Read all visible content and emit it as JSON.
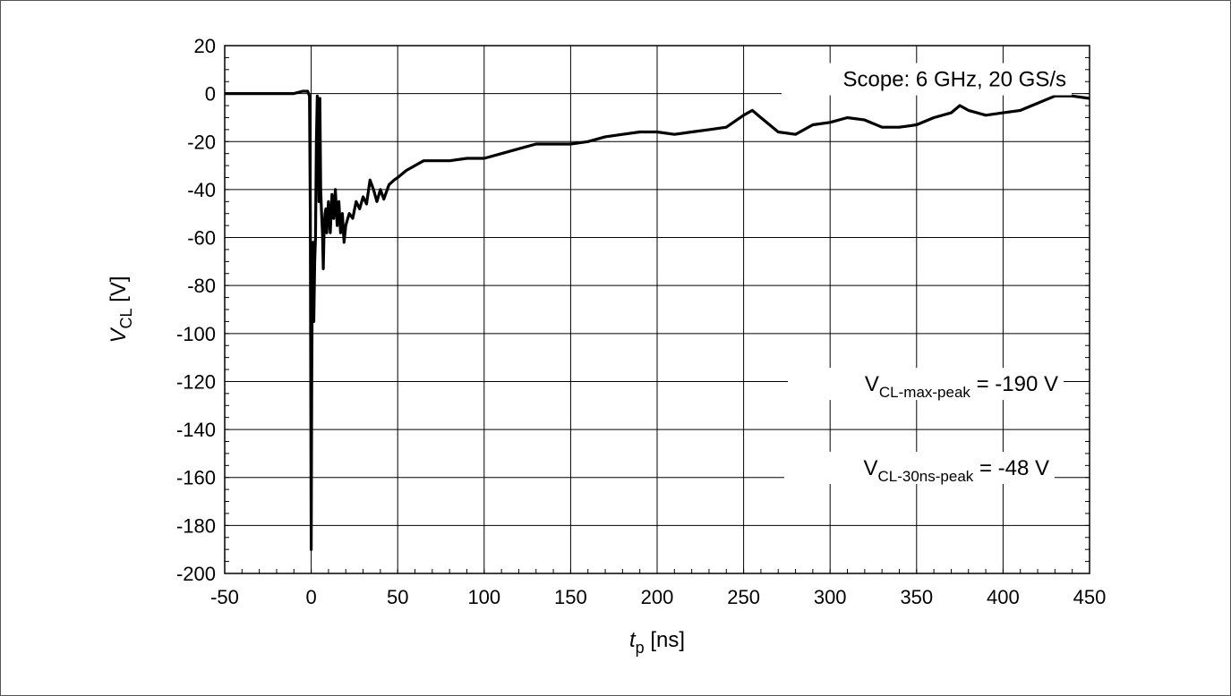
{
  "chart_data": {
    "type": "line",
    "xlabel": {
      "main": "t",
      "sub": "p",
      "unit": " [ns]"
    },
    "ylabel": {
      "main": "V",
      "sub": "CL",
      "unit": " [V]"
    },
    "xlim": [
      -50,
      450
    ],
    "ylim": [
      -200,
      20
    ],
    "xticks": [
      -50,
      0,
      50,
      100,
      150,
      200,
      250,
      300,
      350,
      400,
      450
    ],
    "yticks": [
      20,
      0,
      -20,
      -40,
      -60,
      -80,
      -100,
      -120,
      -140,
      -160,
      -180,
      -200
    ],
    "grid": true,
    "annotations": {
      "scope": "Scope: 6 GHz, 20 GS/s",
      "max_peak": {
        "main": "V",
        "sub": "CL-max-peak",
        "rest": " = -190 V"
      },
      "peak_30ns": {
        "main": "V",
        "sub": "CL-30ns-peak",
        "rest": " = -48 V"
      }
    },
    "series": [
      {
        "color": "#000000",
        "x": [
          -50,
          -40,
          -30,
          -20,
          -10,
          -5,
          -2,
          -1,
          -0.5,
          0,
          0.3,
          0.6,
          1,
          1.5,
          2,
          2.5,
          3,
          3.5,
          4,
          4.5,
          5,
          5.5,
          6,
          6.5,
          7,
          7.5,
          8,
          8.5,
          9,
          9.5,
          10,
          11,
          12,
          13,
          14,
          15,
          16,
          17,
          18,
          19,
          20,
          22,
          24,
          26,
          28,
          30,
          32,
          34,
          36,
          38,
          40,
          42,
          45,
          48,
          50,
          55,
          60,
          65,
          70,
          80,
          90,
          100,
          110,
          120,
          130,
          140,
          150,
          160,
          170,
          180,
          190,
          200,
          210,
          220,
          230,
          240,
          250,
          255,
          260,
          265,
          270,
          280,
          290,
          300,
          310,
          320,
          330,
          340,
          350,
          360,
          370,
          375,
          380,
          390,
          400,
          410,
          420,
          430,
          440,
          450
        ],
        "values": [
          0,
          0,
          0,
          0,
          0,
          1,
          1,
          -1,
          -50,
          -190,
          -120,
          -80,
          -62,
          -95,
          -70,
          -60,
          -20,
          -1,
          -5,
          -45,
          -2,
          -40,
          -50,
          -58,
          -73,
          -55,
          -50,
          -48,
          -58,
          -50,
          -45,
          -58,
          -42,
          -52,
          -40,
          -55,
          -45,
          -58,
          -50,
          -62,
          -55,
          -50,
          -52,
          -45,
          -48,
          -43,
          -46,
          -36,
          -40,
          -45,
          -40,
          -44,
          -38,
          -36,
          -35,
          -32,
          -30,
          -28,
          -28,
          -28,
          -27,
          -27,
          -25,
          -23,
          -21,
          -21,
          -21,
          -20,
          -18,
          -17,
          -16,
          -16,
          -17,
          -16,
          -15,
          -14,
          -9,
          -7,
          -10,
          -13,
          -16,
          -17,
          -13,
          -12,
          -10,
          -11,
          -14,
          -14,
          -13,
          -10,
          -8,
          -5,
          -7,
          -9,
          -8,
          -7,
          -4,
          -1,
          -1,
          -2
        ]
      }
    ]
  }
}
